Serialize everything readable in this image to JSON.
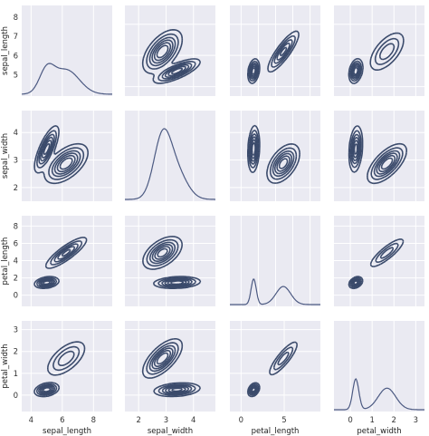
{
  "chart_data": {
    "type": "pairgrid-kde",
    "variables": [
      "sepal_length",
      "sepal_width",
      "petal_length",
      "petal_width"
    ],
    "axis_ticks": {
      "sepal_length": [
        4,
        6,
        8
      ],
      "sepal_width": [
        2,
        3,
        4
      ],
      "petal_length": [
        0,
        2,
        4,
        6,
        8
      ],
      "petal_width": [
        0,
        1,
        2,
        3
      ]
    },
    "axis_limits": {
      "sepal_length": [
        3.4,
        9.2
      ],
      "sepal_width": [
        1.5,
        4.8
      ],
      "petal_length": [
        -1.3,
        9.2
      ],
      "petal_width": [
        -0.75,
        3.4
      ]
    },
    "lower_axis_ticks": {
      "petal_length": [
        0,
        5
      ]
    },
    "cluster_peaks": [
      {
        "sepal_length": 5.0,
        "sepal_width": 3.4,
        "petal_length": 1.5,
        "petal_width": 0.25
      },
      {
        "sepal_length": 6.2,
        "sepal_width": 2.85,
        "petal_length": 4.9,
        "petal_width": 1.6
      }
    ],
    "diagonal_kde": {
      "sepal_length": {
        "peaks": [
          5.9
        ],
        "shape": "broad single hump"
      },
      "sepal_width": {
        "peaks": [
          3.0
        ],
        "shape": "sharp single peak"
      },
      "petal_length": {
        "peaks": [
          1.5,
          4.9
        ],
        "shape": "bimodal"
      },
      "petal_width": {
        "peaks": [
          0.25,
          1.5
        ],
        "shape": "bimodal"
      }
    },
    "grid": true
  }
}
